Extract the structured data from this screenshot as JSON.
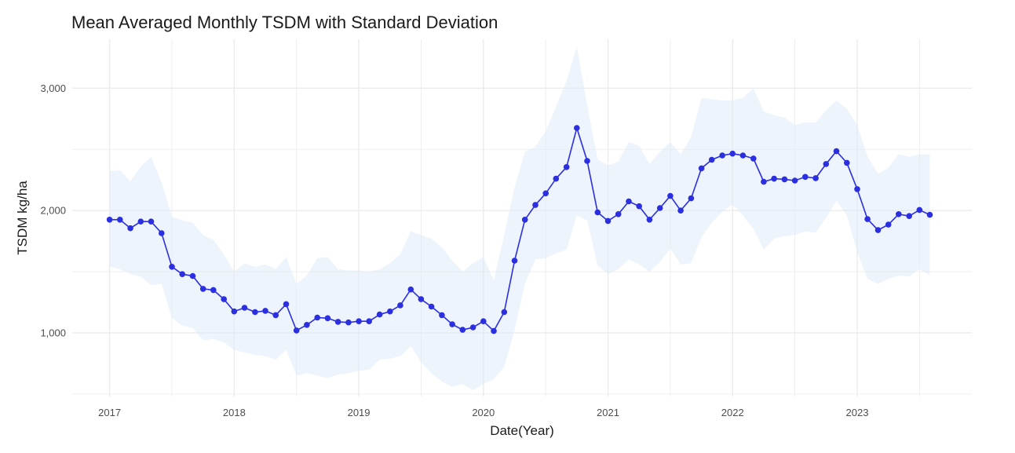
{
  "chart_data": {
    "type": "line",
    "title": "Mean Averaged Monthly TSDM with Standard Deviation",
    "xlabel": "Date(Year)",
    "ylabel": "TSDM kg/ha",
    "x_tick_labels": [
      "2017",
      "2018",
      "2019",
      "2020",
      "2021",
      "2022",
      "2023"
    ],
    "y_tick_labels": [
      "1,000",
      "2,000",
      "3,000"
    ],
    "y_ticks": [
      1000,
      2000,
      3000
    ],
    "xlim": [
      2016.7,
      2023.92
    ],
    "ylim": [
      480,
      3400
    ],
    "grid": true,
    "colors": {
      "line": "#2b2fe0",
      "ribbon": "#deebf7",
      "grid": "#ebebeb"
    },
    "series": [
      {
        "x": [
          2017.0,
          2017.083,
          2017.167,
          2017.25,
          2017.333,
          2017.417,
          2017.5,
          2017.583,
          2017.667,
          2017.75,
          2017.833,
          2017.917,
          2018.0,
          2018.083,
          2018.167,
          2018.25,
          2018.333,
          2018.417,
          2018.5,
          2018.583,
          2018.667,
          2018.75,
          2018.833,
          2018.917,
          2019.0,
          2019.083,
          2019.167,
          2019.25,
          2019.333,
          2019.417,
          2019.5,
          2019.583,
          2019.667,
          2019.75,
          2019.833,
          2019.917,
          2020.0,
          2020.083,
          2020.167,
          2020.25,
          2020.333,
          2020.417,
          2020.5,
          2020.583,
          2020.667,
          2020.75,
          2020.833,
          2020.917,
          2021.0,
          2021.083,
          2021.167,
          2021.25,
          2021.333,
          2021.417,
          2021.5,
          2021.583,
          2021.667,
          2021.75,
          2021.833,
          2021.917,
          2022.0,
          2022.083,
          2022.167,
          2022.25,
          2022.333,
          2022.417,
          2022.5,
          2022.583,
          2022.667,
          2022.75,
          2022.833,
          2022.917,
          2023.0,
          2023.083,
          2023.167,
          2023.25,
          2023.333,
          2023.417,
          2023.5,
          2023.583
        ],
        "y": [
          1925,
          1925,
          1855,
          1910,
          1910,
          1815,
          1540,
          1480,
          1465,
          1360,
          1350,
          1275,
          1175,
          1205,
          1170,
          1180,
          1145,
          1235,
          1020,
          1065,
          1125,
          1120,
          1090,
          1085,
          1095,
          1095,
          1150,
          1175,
          1225,
          1355,
          1275,
          1215,
          1145,
          1070,
          1025,
          1045,
          1095,
          1015,
          1170,
          1590,
          1925,
          2045,
          2140,
          2260,
          2355,
          2675,
          2405,
          1985,
          1915,
          1970,
          2075,
          2035,
          1925,
          2020,
          2120,
          2000,
          2100,
          2345,
          2415,
          2450,
          2465,
          2450,
          2425,
          2235,
          2260,
          2255,
          2245,
          2275,
          2265,
          2380,
          2485,
          2390,
          2175,
          1930,
          1840,
          1885,
          1970,
          1955,
          2005,
          1965
        ],
        "upper": [
          2320,
          2330,
          2240,
          2360,
          2440,
          2230,
          1950,
          1920,
          1900,
          1800,
          1760,
          1640,
          1500,
          1570,
          1540,
          1560,
          1520,
          1620,
          1400,
          1470,
          1610,
          1620,
          1520,
          1510,
          1510,
          1500,
          1520,
          1570,
          1640,
          1830,
          1800,
          1770,
          1700,
          1590,
          1500,
          1570,
          1620,
          1430,
          1800,
          2190,
          2480,
          2520,
          2650,
          2850,
          3060,
          3340,
          2860,
          2420,
          2370,
          2400,
          2560,
          2530,
          2380,
          2480,
          2560,
          2460,
          2600,
          2920,
          2910,
          2900,
          2900,
          2920,
          3000,
          2810,
          2780,
          2760,
          2700,
          2720,
          2720,
          2820,
          2900,
          2830,
          2700,
          2440,
          2300,
          2350,
          2460,
          2440,
          2460,
          2460
        ],
        "lower": [
          1540,
          1520,
          1480,
          1460,
          1390,
          1400,
          1120,
          1060,
          1040,
          940,
          950,
          920,
          860,
          840,
          820,
          810,
          780,
          860,
          650,
          670,
          650,
          630,
          660,
          670,
          690,
          700,
          780,
          790,
          810,
          890,
          760,
          670,
          600,
          560,
          580,
          530,
          580,
          620,
          720,
          1020,
          1400,
          1600,
          1610,
          1650,
          1680,
          1960,
          1920,
          1550,
          1480,
          1520,
          1600,
          1560,
          1500,
          1580,
          1690,
          1560,
          1570,
          1780,
          1900,
          1990,
          2050,
          1960,
          1850,
          1680,
          1770,
          1790,
          1800,
          1830,
          1820,
          1940,
          2080,
          1960,
          1660,
          1440,
          1400,
          1440,
          1470,
          1460,
          1520,
          1470
        ]
      }
    ]
  }
}
